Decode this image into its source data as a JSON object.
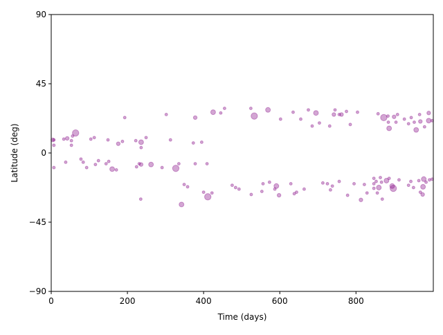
{
  "chart_data": {
    "type": "scatter",
    "xlabel": "Time (days)",
    "ylabel": "Latitude (deg)",
    "color": "#800080",
    "alpha": 0.35,
    "xlim": [
      0,
      1003
    ],
    "ylim": [
      -90,
      90
    ],
    "xticks": [
      0,
      200,
      400,
      600,
      800
    ],
    "yticks": [
      {
        "value": -90,
        "label": "−90"
      },
      {
        "value": -45,
        "label": "−45"
      },
      0,
      45,
      90
    ],
    "x": [
      4,
      7,
      33,
      42,
      53,
      56,
      64,
      53,
      7,
      104,
      113,
      149,
      176,
      187,
      193,
      222,
      236,
      249,
      236,
      302,
      313,
      373,
      378,
      395,
      425,
      445,
      455,
      524,
      533,
      569,
      602,
      635,
      655,
      675,
      685,
      695,
      704,
      731,
      742,
      745,
      756,
      762,
      775,
      785,
      804,
      858,
      873,
      884,
      885,
      887,
      900,
      909,
      905,
      938,
      945,
      953,
      958,
      967,
      969,
      980,
      991,
      991,
      1000,
      927,
      7,
      38,
      78,
      84,
      93,
      116,
      124,
      144,
      151,
      160,
      171,
      224,
      231,
      236,
      235,
      262,
      291,
      327,
      335,
      342,
      349,
      358,
      378,
      400,
      409,
      411,
      422,
      475,
      484,
      493,
      525,
      553,
      556,
      573,
      587,
      591,
      598,
      629,
      638,
      644,
      664,
      713,
      725,
      733,
      738,
      756,
      778,
      795,
      813,
      822,
      829,
      847,
      847,
      847,
      853,
      856,
      860,
      864,
      867,
      869,
      880,
      887,
      895,
      898,
      913,
      938,
      944,
      951,
      965,
      969,
      975,
      976,
      978,
      984,
      993,
      1000
    ],
    "values": [
      8.5,
      8.5,
      9,
      9.5,
      8,
      11,
      13,
      5,
      5,
      9,
      10,
      8.5,
      6,
      7.5,
      23,
      8,
      7,
      10,
      3.5,
      25,
      8.5,
      6.5,
      23,
      7,
      26.5,
      26,
      29,
      29,
      24,
      28,
      22,
      26.5,
      22,
      28,
      17.5,
      26,
      19.5,
      17.5,
      25,
      28,
      25,
      25,
      27,
      18.5,
      26.5,
      25.5,
      23,
      24,
      20,
      16,
      23.5,
      25,
      20,
      19,
      23,
      20,
      15,
      25,
      20.5,
      17,
      26,
      21,
      21,
      22,
      -9.5,
      -6,
      -4,
      -6,
      -9.5,
      -7.5,
      -5,
      -7,
      -5.5,
      -10.5,
      -11,
      -9,
      -7,
      -7.5,
      -30,
      -7.5,
      -9.5,
      -10,
      -7,
      -33.5,
      -20.5,
      -22,
      -7,
      -25.5,
      -7,
      -28.5,
      -26,
      -21,
      -22.5,
      -23.5,
      -27,
      -25,
      -20,
      -19,
      -23.5,
      -21.5,
      -27.5,
      -20,
      -26.5,
      -25.5,
      -23.5,
      -19.5,
      -20,
      -24,
      -21.5,
      -18.5,
      -27.5,
      -20,
      -30.5,
      -20.5,
      -26,
      -16.5,
      -20,
      -23,
      -18.5,
      -26,
      -22.5,
      -16,
      -19,
      -30,
      -18,
      -16.5,
      -21.5,
      -23,
      -17.5,
      -21,
      -18.5,
      -22.5,
      -18,
      -25.5,
      -27,
      -22,
      -17,
      -19,
      -17.5,
      -17
    ],
    "sizes": [
      15,
      8,
      8,
      15,
      8,
      8,
      45,
      8,
      8,
      8,
      8,
      8,
      15,
      8,
      8,
      8,
      25,
      8,
      8,
      8,
      8,
      8,
      15,
      8,
      25,
      8,
      8,
      8,
      45,
      25,
      8,
      8,
      8,
      8,
      8,
      25,
      8,
      8,
      15,
      8,
      8,
      15,
      8,
      8,
      8,
      8,
      45,
      8,
      8,
      25,
      15,
      8,
      8,
      8,
      8,
      8,
      25,
      8,
      15,
      8,
      15,
      25,
      8,
      8,
      8,
      8,
      8,
      8,
      8,
      8,
      8,
      8,
      8,
      25,
      8,
      8,
      8,
      15,
      8,
      25,
      8,
      45,
      8,
      25,
      8,
      8,
      8,
      8,
      8,
      45,
      8,
      8,
      8,
      8,
      8,
      8,
      8,
      8,
      8,
      25,
      15,
      8,
      8,
      8,
      8,
      8,
      8,
      8,
      8,
      8,
      8,
      8,
      15,
      8,
      8,
      8,
      8,
      8,
      8,
      8,
      25,
      8,
      8,
      8,
      25,
      8,
      25,
      45,
      8,
      8,
      8,
      8,
      8,
      8,
      15,
      25,
      25,
      8,
      8,
      8
    ]
  }
}
